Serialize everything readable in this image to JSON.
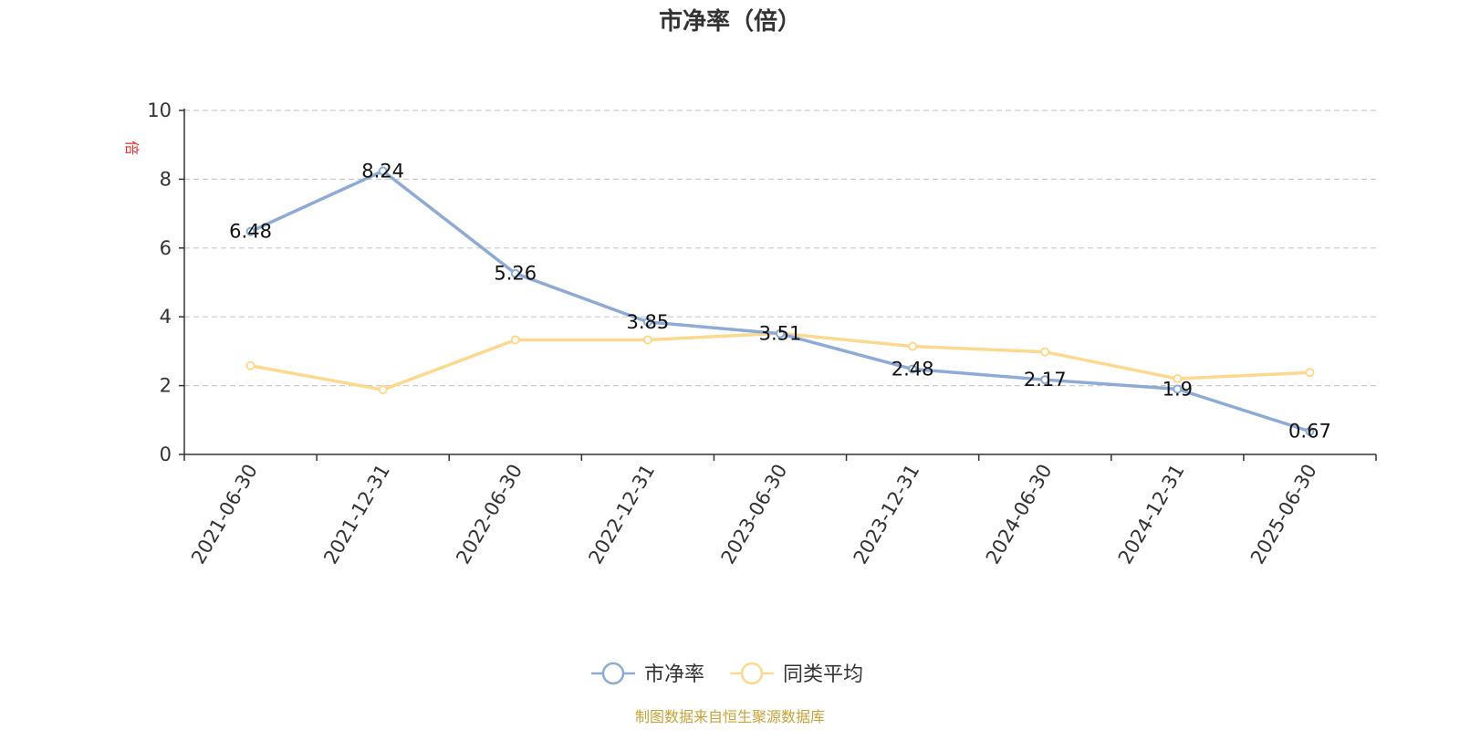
{
  "chart_data": {
    "type": "line",
    "title": "市净率（倍）",
    "ylabel": "倍",
    "xlabel": "",
    "ylim": [
      0,
      10
    ],
    "yticks": [
      0,
      2,
      4,
      6,
      8,
      10
    ],
    "grid": true,
    "legend_position": "bottom",
    "categories": [
      "2021-06-30",
      "2021-12-31",
      "2022-06-30",
      "2022-12-31",
      "2023-06-30",
      "2023-12-31",
      "2024-06-30",
      "2024-12-31",
      "2025-06-30"
    ],
    "series": [
      {
        "name": "市净率",
        "color": "#8eabd8",
        "values": [
          6.48,
          8.24,
          5.26,
          3.85,
          3.51,
          2.48,
          2.17,
          1.9,
          0.67
        ],
        "labels": [
          "6.48",
          "8.24",
          "5.26",
          "3.85",
          "3.51",
          "2.48",
          "2.17",
          "1.9",
          "0.67"
        ]
      },
      {
        "name": "同类平均",
        "color": "#fcd98f",
        "values": [
          2.58,
          1.88,
          3.33,
          3.33,
          3.52,
          3.14,
          2.98,
          2.2,
          2.38
        ]
      }
    ]
  },
  "colors": {
    "unit_label": "#e03030",
    "source": "#c9a23a",
    "axis": "#333333",
    "grid": "#cccccc"
  },
  "footer": {
    "source": "制图数据来自恒生聚源数据库"
  }
}
